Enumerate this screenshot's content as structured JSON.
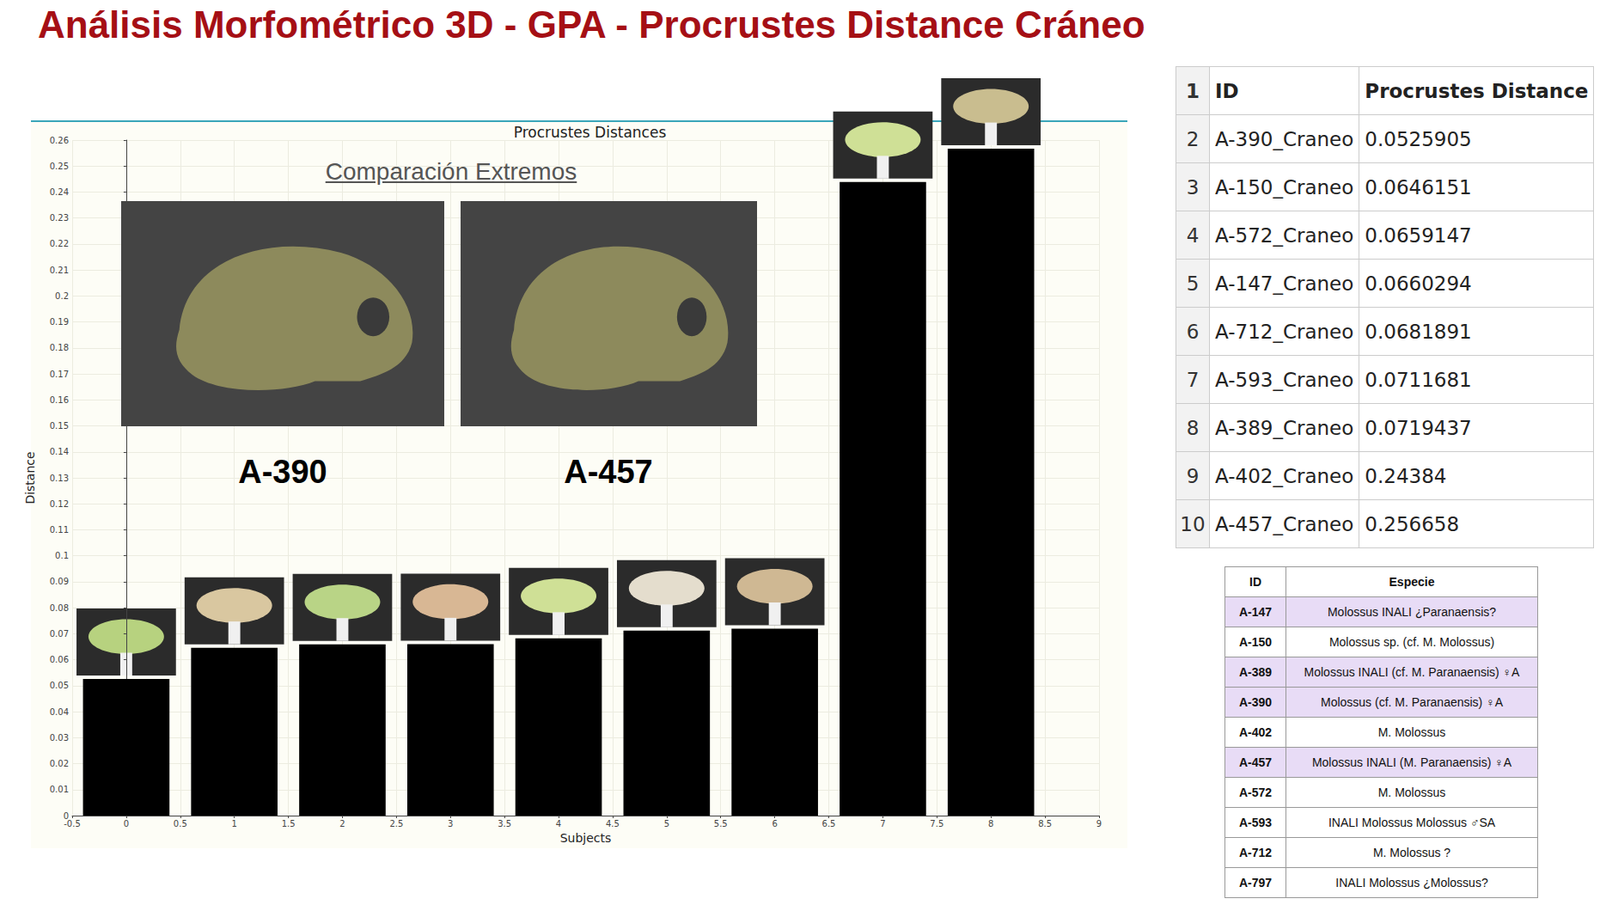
{
  "slide_title": "Análisis Morfométrico 3D - GPA - Procrustes Distance Cráneo",
  "chart_data": {
    "type": "bar",
    "title": "Procrustes Distances",
    "x": [
      0,
      1,
      2,
      3,
      4,
      5,
      6,
      7,
      8
    ],
    "values": [
      0.0525905,
      0.0646151,
      0.0659147,
      0.0660294,
      0.0681891,
      0.0711681,
      0.0719437,
      0.24384,
      0.256658
    ],
    "color": "#000000",
    "xlabel": "Subjects",
    "ylabel": "Distance",
    "xlim": [
      -0.5,
      9
    ],
    "xticks": [
      -0.5,
      0,
      0.5,
      1,
      1.5,
      2,
      2.5,
      3,
      3.5,
      4,
      4.5,
      5,
      5.5,
      6,
      6.5,
      7,
      7.5,
      8,
      8.5,
      9
    ],
    "ylim": [
      0,
      0.26
    ],
    "yticks": [
      0,
      0.01,
      0.02,
      0.03,
      0.04,
      0.05,
      0.06,
      0.07,
      0.08,
      0.09,
      0.1,
      0.11,
      0.12,
      0.13,
      0.14,
      0.15,
      0.16,
      0.17,
      0.18,
      0.19,
      0.2,
      0.21,
      0.22,
      0.23,
      0.24,
      0.25,
      0.26
    ],
    "grid": true,
    "annotations": [
      "Comparación Extremos",
      "A-390",
      "A-457"
    ]
  },
  "table_distances": {
    "row_numbers": [
      "1",
      "2",
      "3",
      "4",
      "5",
      "6",
      "7",
      "8",
      "9",
      "10"
    ],
    "header": [
      "ID",
      "Procrustes Distance"
    ],
    "rows": [
      [
        "A-390_Craneo",
        "0.0525905"
      ],
      [
        "A-150_Craneo",
        "0.0646151"
      ],
      [
        "A-572_Craneo",
        "0.0659147"
      ],
      [
        "A-147_Craneo",
        "0.0660294"
      ],
      [
        "A-712_Craneo",
        "0.0681891"
      ],
      [
        "A-593_Craneo",
        "0.0711681"
      ],
      [
        "A-389_Craneo",
        "0.0719437"
      ],
      [
        "A-402_Craneo",
        "0.24384"
      ],
      [
        "A-457_Craneo",
        "0.256658"
      ]
    ]
  },
  "table_species": {
    "header": [
      "ID",
      "Especie"
    ],
    "rows": [
      {
        "cells": [
          "A-147",
          "Molossus INALI ¿Paranaensis?"
        ],
        "highlight": true
      },
      {
        "cells": [
          "A-150",
          "Molossus sp. (cf. M. Molossus)"
        ],
        "highlight": false
      },
      {
        "cells": [
          "A-389",
          "Molossus INALI (cf. M. Paranaensis) ♀A"
        ],
        "highlight": true
      },
      {
        "cells": [
          "A-390",
          "Molossus (cf. M. Paranaensis) ♀A"
        ],
        "highlight": true
      },
      {
        "cells": [
          "A-402",
          "M. Molossus"
        ],
        "highlight": false
      },
      {
        "cells": [
          "A-457",
          "Molossus INALI (M. Paranaensis) ♀A"
        ],
        "highlight": true
      },
      {
        "cells": [
          "A-572",
          "M. Molossus"
        ],
        "highlight": false
      },
      {
        "cells": [
          "A-593",
          "INALI Molossus Molossus ♂SA"
        ],
        "highlight": false
      },
      {
        "cells": [
          "A-712",
          "M. Molossus ?"
        ],
        "highlight": false
      },
      {
        "cells": [
          "A-797",
          "INALI Molossus ¿Molossus?"
        ],
        "highlight": false
      }
    ]
  }
}
